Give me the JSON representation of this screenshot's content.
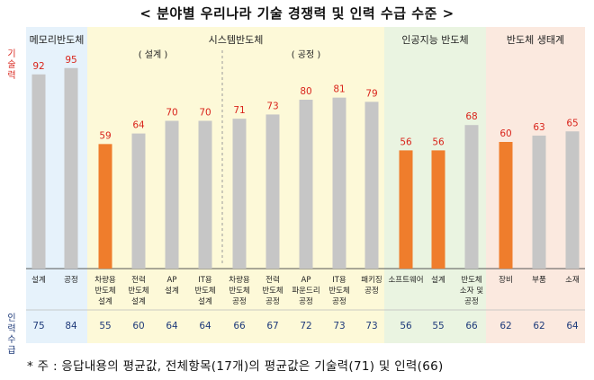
{
  "title": "< 분야별 우리나라 기술 경쟁력 및 인력 수급 수준 >",
  "row_labels": {
    "tech": "기술력",
    "labor": "인력 수급"
  },
  "groups": [
    {
      "name": "메모리반도체",
      "color": "#e6f2fb"
    },
    {
      "name": "시스템반도체",
      "color": "#fdf9d8"
    },
    {
      "name": "인공지능 반도체",
      "color": "#eaf4e1"
    },
    {
      "name": "반도체 생태계",
      "color": "#fbe9df"
    }
  ],
  "subgroups": [
    "( 설계 )",
    "( 공정 )"
  ],
  "colors": {
    "bar": "#c6c6c6",
    "highlight": "#ef7d2c",
    "value": "#d9251c",
    "labor": "#1f3b7a"
  },
  "chart_data": {
    "type": "bar",
    "categories": [
      "설계",
      "공정",
      "차량용 반도체 설계",
      "전력 반도체 설계",
      "AP 설계",
      "IT용 반도체 설계",
      "차량용 반도체 공정",
      "전력 반도체 공정",
      "AP 파운드리 공정",
      "IT용 반도체 공정",
      "패키징 공정",
      "소프트웨어",
      "설계",
      "반도체 소자 및 공정",
      "장비",
      "부품",
      "소재"
    ],
    "category_lines": [
      [
        "설계"
      ],
      [
        "공정"
      ],
      [
        "차량용",
        "반도체",
        "설계"
      ],
      [
        "전력",
        "반도체",
        "설계"
      ],
      [
        "AP",
        "설계"
      ],
      [
        "IT용",
        "반도체",
        "설계"
      ],
      [
        "차량용",
        "반도체",
        "공정"
      ],
      [
        "전력",
        "반도체",
        "공정"
      ],
      [
        "AP",
        "파운드리",
        "공정"
      ],
      [
        "IT용",
        "반도체",
        "공정"
      ],
      [
        "패키징",
        "공정"
      ],
      [
        "소프트웨어"
      ],
      [
        "설계"
      ],
      [
        "반도체",
        "소자 및",
        "공정"
      ],
      [
        "장비"
      ],
      [
        "부품"
      ],
      [
        "소재"
      ]
    ],
    "series": [
      {
        "name": "기술력",
        "values": [
          92,
          95,
          59,
          64,
          70,
          70,
          71,
          73,
          80,
          81,
          79,
          56,
          56,
          68,
          60,
          63,
          65
        ]
      },
      {
        "name": "인력 수급",
        "values": [
          75,
          84,
          55,
          60,
          64,
          64,
          66,
          67,
          72,
          73,
          73,
          56,
          55,
          66,
          62,
          62,
          64
        ]
      }
    ],
    "highlighted": [
      2,
      11,
      12,
      14
    ],
    "ylim": [
      0,
      110
    ]
  },
  "note": "* 주 : 응답내용의 평균값, 전체항목(17개)의 평균값은 기술력(71) 및 인력(66)"
}
